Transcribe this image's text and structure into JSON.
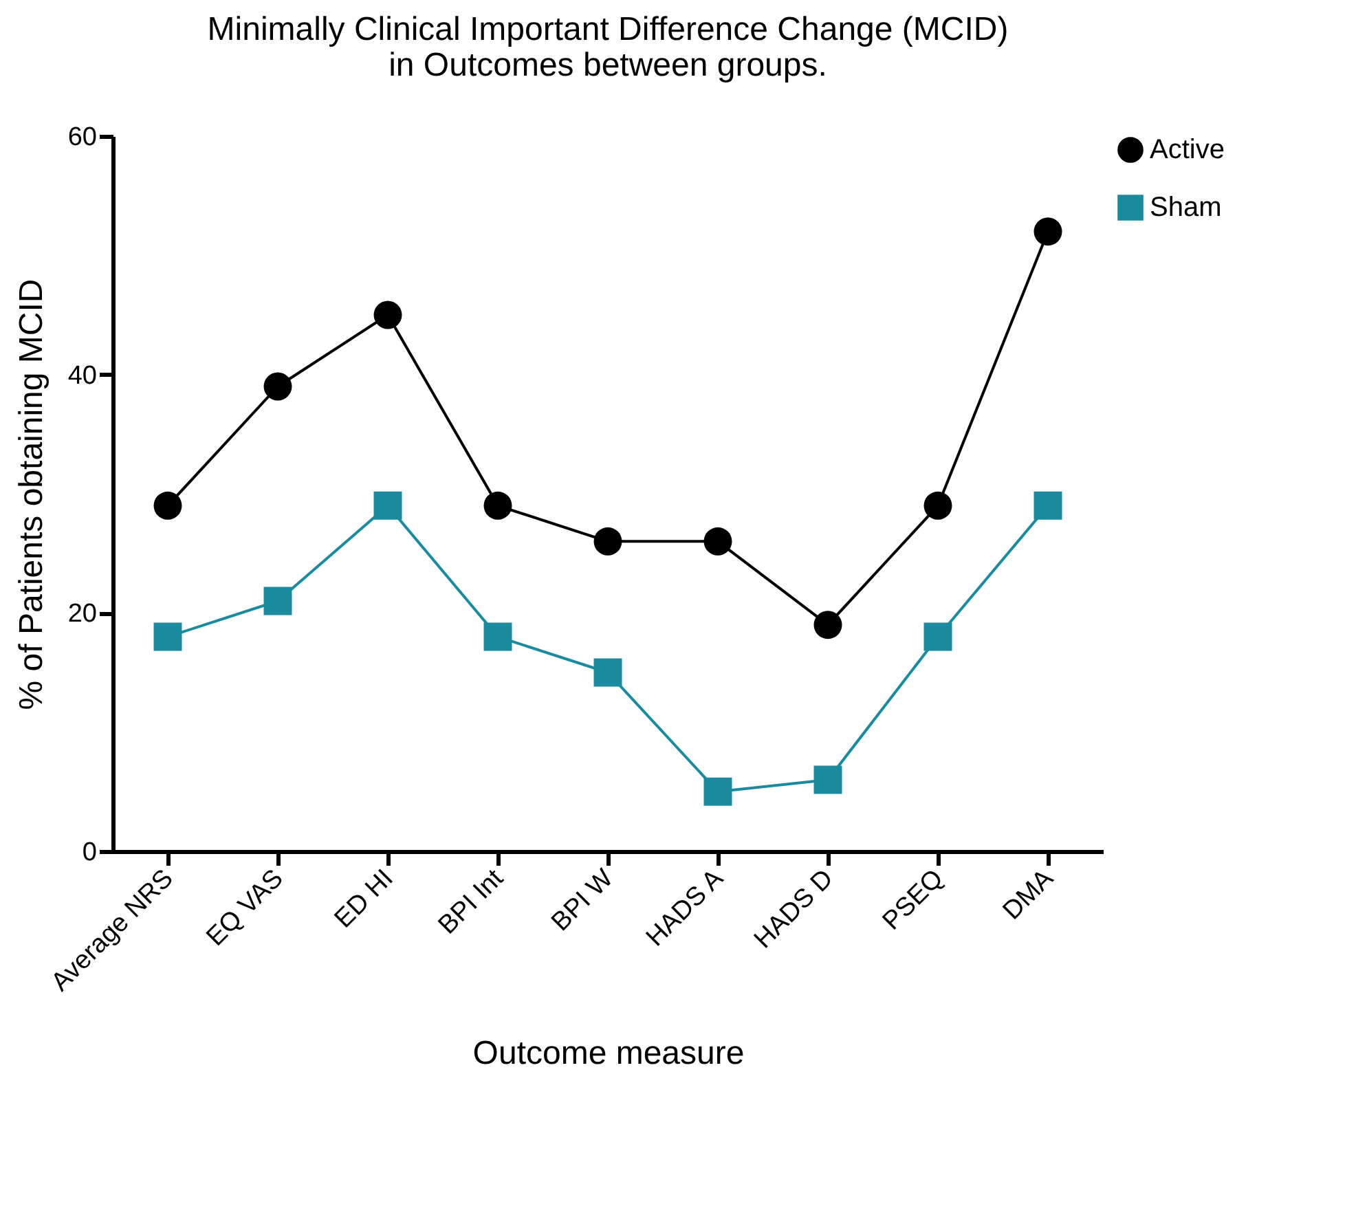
{
  "chart_data": {
    "type": "line",
    "title": "Minimally Clinical Important Difference Change (MCID)\nin Outcomes between groups.",
    "xlabel": "Outcome measure",
    "ylabel": "% of Patients obtaining MCID",
    "categories": [
      "Average NRS",
      "EQ VAS",
      "ED HI",
      "BPI Int",
      "BPI W",
      "HADS A",
      "HADS D",
      "PSEQ",
      "DMA"
    ],
    "series": [
      {
        "name": "Active",
        "color": "#000000",
        "marker": "circle",
        "values": [
          29,
          39,
          45,
          29,
          26,
          26,
          19,
          29,
          52
        ]
      },
      {
        "name": "Sham",
        "color": "#1a8a9e",
        "marker": "square",
        "values": [
          18,
          21,
          29,
          18,
          15,
          5,
          6,
          18,
          29
        ]
      }
    ],
    "ylim": [
      0,
      60
    ],
    "yticks": [
      0,
      20,
      40,
      60
    ],
    "grid": false,
    "legend": "right",
    "line_style": "solid"
  }
}
